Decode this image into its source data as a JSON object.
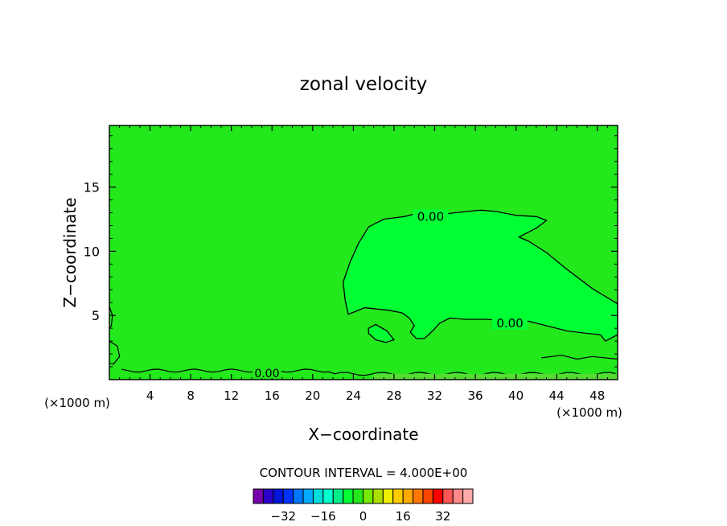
{
  "chart_data": {
    "type": "contour",
    "title": "zonal velocity",
    "xlabel": "X−coordinate",
    "ylabel": "Z−coordinate",
    "x_units_left": "(×1000 m)",
    "x_units_right": "(×1000 m)",
    "xlim": [
      0,
      50
    ],
    "ylim": [
      0,
      19.8
    ],
    "x_ticks": [
      4,
      8,
      12,
      16,
      20,
      24,
      28,
      32,
      36,
      40,
      44,
      48
    ],
    "y_ticks": [
      5,
      10,
      15
    ],
    "fill_color": "#22e81c",
    "contours": [
      {
        "level": 0.0,
        "label": "0.00",
        "fill": "#00ff33",
        "closed": true,
        "points": [
          [
            50,
            5.9
          ],
          [
            47.5,
            7.1
          ],
          [
            45,
            8.6
          ],
          [
            43,
            9.9
          ],
          [
            41.2,
            10.8
          ],
          [
            40.3,
            11.1
          ],
          [
            41,
            11.4
          ],
          [
            42,
            11.8
          ],
          [
            43,
            12.4
          ],
          [
            42,
            12.7
          ],
          [
            40,
            12.8
          ],
          [
            38,
            13.1
          ],
          [
            36.5,
            13.2
          ],
          [
            34,
            13
          ],
          [
            32,
            12.8
          ],
          [
            30,
            12.9
          ],
          [
            29,
            12.7
          ],
          [
            27,
            12.5
          ],
          [
            25.5,
            11.9
          ],
          [
            24.5,
            10.6
          ],
          [
            23.7,
            9.2
          ],
          [
            23,
            7.6
          ],
          [
            23.2,
            6.2
          ],
          [
            23.5,
            5.1
          ],
          [
            24.2,
            5.3
          ],
          [
            25.1,
            5.6
          ],
          [
            26.3,
            5.5
          ],
          [
            27.5,
            5.4
          ],
          [
            28.8,
            5.2
          ],
          [
            29.5,
            4.8
          ],
          [
            30,
            4.2
          ],
          [
            29.6,
            3.7
          ],
          [
            30.2,
            3.2
          ],
          [
            31,
            3.2
          ],
          [
            31.8,
            3.8
          ],
          [
            32.5,
            4.4
          ],
          [
            33.5,
            4.8
          ],
          [
            35,
            4.7
          ],
          [
            37,
            4.7
          ],
          [
            39,
            4.6
          ],
          [
            41,
            4.6
          ],
          [
            43,
            4.2
          ],
          [
            45,
            3.8
          ],
          [
            47,
            3.6
          ],
          [
            48.3,
            3.5
          ],
          [
            48.8,
            3
          ],
          [
            50,
            3.5
          ]
        ]
      },
      {
        "level": 0.0,
        "label": "",
        "fill": "#00ff33",
        "closed": true,
        "points": [
          [
            25.5,
            4.0
          ],
          [
            26.2,
            4.3
          ],
          [
            27.3,
            3.8
          ],
          [
            28,
            3.1
          ],
          [
            27.2,
            2.9
          ],
          [
            26.2,
            3.1
          ],
          [
            25.5,
            3.6
          ]
        ]
      }
    ],
    "near_surface_label": "0.00",
    "colorbar": {
      "title": "CONTOUR INTERVAL = 4.000E+00",
      "interval": 4.0,
      "tick_labels": [
        "−32",
        "−16",
        "0",
        "16",
        "32"
      ],
      "tick_values": [
        -32,
        -16,
        0,
        16,
        32
      ],
      "colors": [
        "#7700aa",
        "#2b00c8",
        "#0015d8",
        "#0033ff",
        "#0077ff",
        "#00aaff",
        "#00dddd",
        "#00ffcc",
        "#00ee88",
        "#00ff33",
        "#22e81c",
        "#77e800",
        "#aadd00",
        "#eeee00",
        "#ffcc00",
        "#ffaa00",
        "#ff7700",
        "#ff4400",
        "#ff0000",
        "#ff5555",
        "#ff8888",
        "#ffaaaa"
      ]
    }
  }
}
